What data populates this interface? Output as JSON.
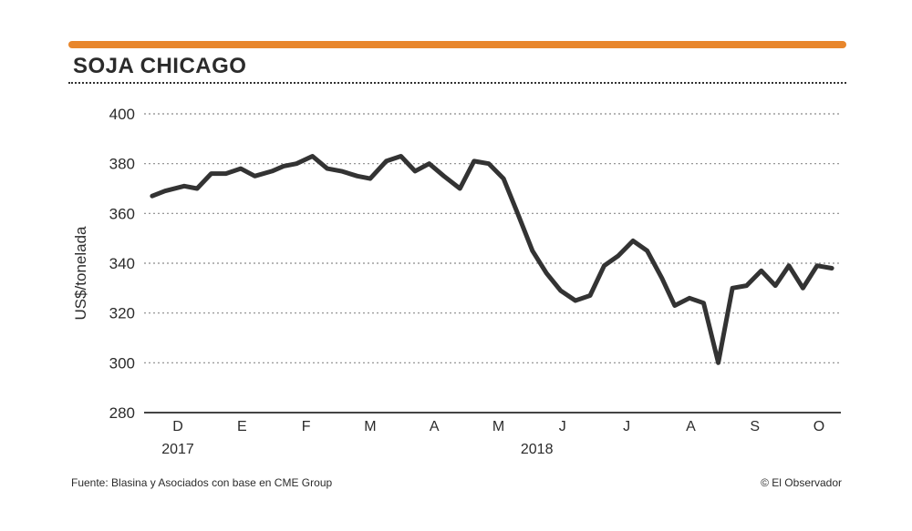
{
  "title": "SOJA CHICAGO",
  "source": "Fuente: Blasina y Asociados con base en CME Group",
  "credit": "© El Observador",
  "colors": {
    "accent": "#e8862c",
    "line": "#333333",
    "text": "#2b2b2b"
  },
  "chart_data": {
    "type": "line",
    "ylabel": "US$/tonelada",
    "ylim": [
      280,
      400
    ],
    "yticks": [
      400,
      380,
      360,
      340,
      320,
      300,
      280
    ],
    "grid": true,
    "month_labels": [
      "D",
      "E",
      "F",
      "M",
      "A",
      "M",
      "J",
      "J",
      "A",
      "S",
      "O"
    ],
    "year_labels": [
      {
        "label": "2017",
        "month_index": 0
      },
      {
        "label": "2018",
        "month_index": 5.6
      }
    ],
    "x_unit": "month index (0 = Dec 2017)",
    "series": [
      {
        "values": [
          {
            "x": -0.4,
            "y": 367
          },
          {
            "x": -0.2,
            "y": 369
          },
          {
            "x": 0.1,
            "y": 371
          },
          {
            "x": 0.3,
            "y": 370
          },
          {
            "x": 0.52,
            "y": 376
          },
          {
            "x": 0.75,
            "y": 376
          },
          {
            "x": 0.98,
            "y": 378
          },
          {
            "x": 1.2,
            "y": 375
          },
          {
            "x": 1.47,
            "y": 377
          },
          {
            "x": 1.65,
            "y": 379
          },
          {
            "x": 1.85,
            "y": 380
          },
          {
            "x": 2.1,
            "y": 383
          },
          {
            "x": 2.33,
            "y": 378
          },
          {
            "x": 2.55,
            "y": 377
          },
          {
            "x": 2.8,
            "y": 375
          },
          {
            "x": 3.0,
            "y": 374
          },
          {
            "x": 3.25,
            "y": 381
          },
          {
            "x": 3.48,
            "y": 383
          },
          {
            "x": 3.7,
            "y": 377
          },
          {
            "x": 3.92,
            "y": 380
          },
          {
            "x": 4.15,
            "y": 375
          },
          {
            "x": 4.4,
            "y": 370
          },
          {
            "x": 4.62,
            "y": 381
          },
          {
            "x": 4.85,
            "y": 380
          },
          {
            "x": 5.08,
            "y": 374
          },
          {
            "x": 5.3,
            "y": 360
          },
          {
            "x": 5.53,
            "y": 345
          },
          {
            "x": 5.75,
            "y": 336
          },
          {
            "x": 5.97,
            "y": 329
          },
          {
            "x": 6.2,
            "y": 325
          },
          {
            "x": 6.43,
            "y": 327
          },
          {
            "x": 6.65,
            "y": 339
          },
          {
            "x": 6.87,
            "y": 343
          },
          {
            "x": 7.1,
            "y": 349
          },
          {
            "x": 7.32,
            "y": 345
          },
          {
            "x": 7.55,
            "y": 334
          },
          {
            "x": 7.75,
            "y": 323
          },
          {
            "x": 7.98,
            "y": 326
          },
          {
            "x": 8.2,
            "y": 324
          },
          {
            "x": 8.43,
            "y": 300
          },
          {
            "x": 8.65,
            "y": 330
          },
          {
            "x": 8.87,
            "y": 331
          },
          {
            "x": 9.1,
            "y": 337
          },
          {
            "x": 9.32,
            "y": 331
          },
          {
            "x": 9.53,
            "y": 339
          },
          {
            "x": 9.75,
            "y": 330
          },
          {
            "x": 9.97,
            "y": 339
          },
          {
            "x": 10.2,
            "y": 338
          }
        ]
      }
    ]
  }
}
